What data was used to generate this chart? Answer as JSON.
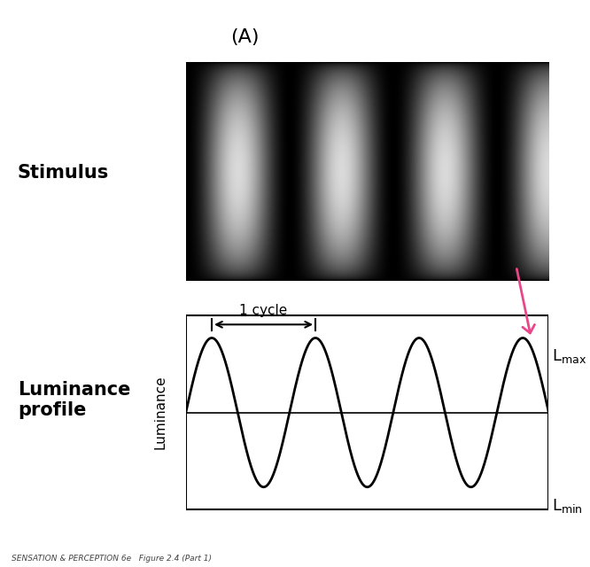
{
  "title_label": "(A)",
  "stimulus_label": "Stimulus",
  "profile_label": "Luminance\nprofile",
  "y_axis_label": "Luminance",
  "lmax_label": "L",
  "lmax_sub": "max",
  "lmin_label": "L",
  "lmin_sub": "min",
  "cycle_label": "1 cycle",
  "footer_text": "SENSATION & PERCEPTION 6e   Figure 2.4 (Part 1)",
  "sine_freq": 3.5,
  "grating_freq": 3.5,
  "arrow_color": "#E8488A",
  "background_color": "#ffffff",
  "text_color": "#000000",
  "sine_color": "#000000"
}
